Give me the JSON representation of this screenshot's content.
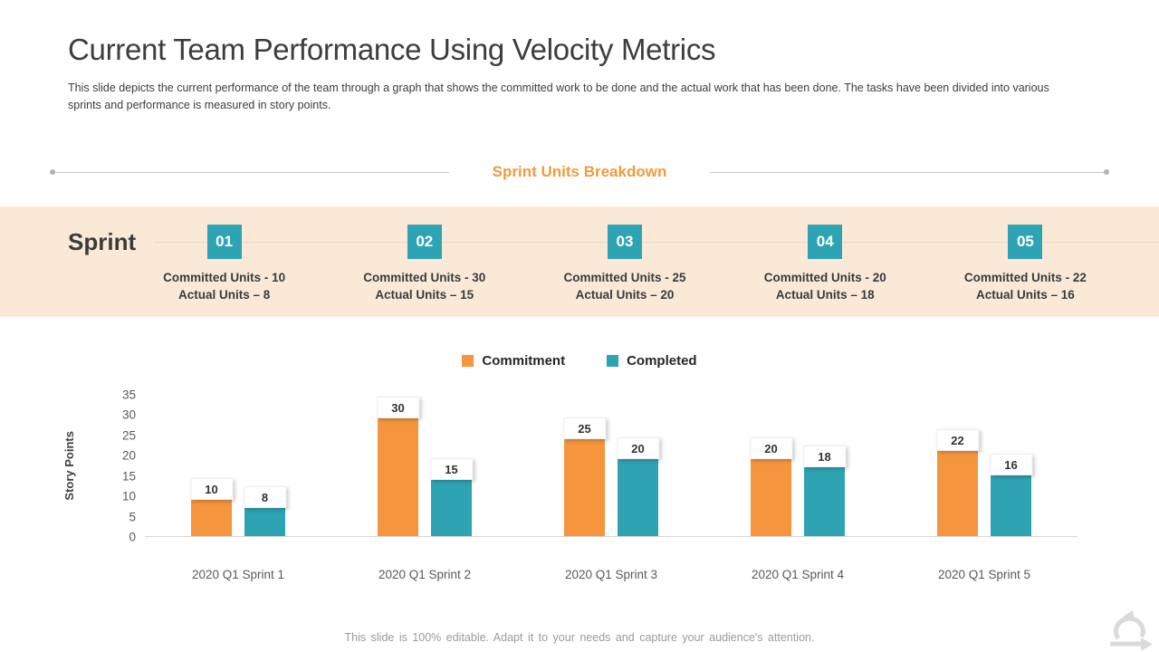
{
  "slide": {
    "title": "Current Team Performance Using Velocity Metrics",
    "subtitle": "This slide depicts the current performance of the team through a graph that shows the committed work to be done and the actual work that has been done. The tasks have been divided into various sprints and performance is measured in story points.",
    "section_header": "Sprint Units Breakdown",
    "footer": "This slide is 100% editable. Adapt it to your needs and capture your audience's attention."
  },
  "sprint_band": {
    "label": "Sprint",
    "items": [
      {
        "number": "01",
        "committed": "Committed Units - 10",
        "actual": "Actual Units – 8"
      },
      {
        "number": "02",
        "committed": "Committed Units - 30",
        "actual": "Actual Units – 15"
      },
      {
        "number": "03",
        "committed": "Committed Units - 25",
        "actual": "Actual Units – 20"
      },
      {
        "number": "04",
        "committed": "Committed Units - 20",
        "actual": "Actual Units – 18"
      },
      {
        "number": "05",
        "committed": "Committed Units - 22",
        "actual": "Actual Units – 16"
      }
    ]
  },
  "chart_data": {
    "type": "bar",
    "categories": [
      "2020 Q1 Sprint 1",
      "2020 Q1 Sprint 2",
      "2020 Q1 Sprint 3",
      "2020 Q1 Sprint 4",
      "2020 Q1 Sprint 5"
    ],
    "series": [
      {
        "name": "Commitment",
        "color": "#f5953d",
        "values": [
          10,
          30,
          25,
          20,
          22
        ]
      },
      {
        "name": "Completed",
        "color": "#2ea3b3",
        "values": [
          8,
          15,
          20,
          18,
          16
        ]
      }
    ],
    "ylabel": "Story Points",
    "yticks": [
      0,
      5,
      10,
      15,
      20,
      25,
      30,
      35
    ],
    "ylim": [
      0,
      35
    ],
    "legend_position": "top-center",
    "grid": false,
    "data_labels": true
  },
  "icons": {
    "logo": "sprint-cycle-icon"
  },
  "colors": {
    "accent_orange": "#f5953d",
    "accent_teal": "#2ea3b3",
    "band_background": "#fbe9d7",
    "section_header_orange": "#f09b3d",
    "body_text": "#3d3d3d",
    "footer_text": "#9b9b9b"
  }
}
